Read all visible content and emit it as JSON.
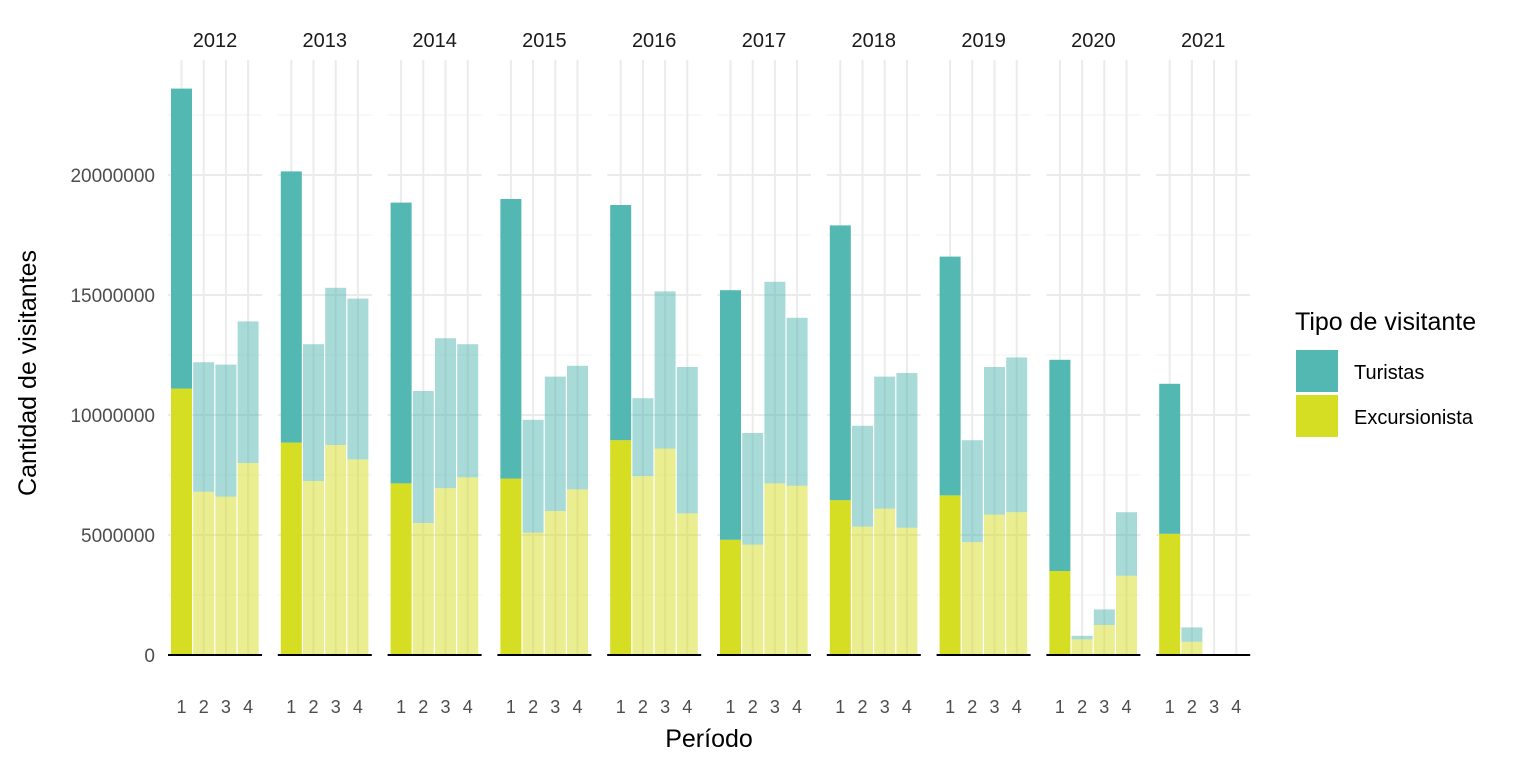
{
  "chart_data": {
    "type": "bar",
    "stacked": true,
    "facet_by": "year",
    "facets": [
      "2012",
      "2013",
      "2014",
      "2015",
      "2016",
      "2017",
      "2018",
      "2019",
      "2020",
      "2021"
    ],
    "categories": [
      "1",
      "2",
      "3",
      "4"
    ],
    "xlabel": "Período",
    "ylabel": "Cantidad de visitantes",
    "ylim": [
      0,
      24000000
    ],
    "yticks": [
      0,
      5000000,
      10000000,
      15000000,
      20000000
    ],
    "ytick_labels": [
      "0",
      "5000000",
      "10000000",
      "15000000",
      "20000000"
    ],
    "grid": true,
    "highlight_period": "1",
    "legend": {
      "title": "Tipo de visitante",
      "placement": "right",
      "entries": [
        {
          "key": "turistas",
          "label": "Turistas",
          "color": "#52B8B1"
        },
        {
          "key": "excursionistas",
          "label": "Excursionista",
          "color": "#D5DE22"
        }
      ]
    },
    "series": [
      {
        "key": "excursionistas",
        "name": "Excursionista",
        "color": "#D5DE22",
        "values": [
          [
            11100000,
            6800000,
            6600000,
            8000000
          ],
          [
            8850000,
            7250000,
            8750000,
            8150000
          ],
          [
            7150000,
            5500000,
            6950000,
            7400000
          ],
          [
            7350000,
            5100000,
            6000000,
            6900000
          ],
          [
            8950000,
            7450000,
            8600000,
            5900000
          ],
          [
            4800000,
            4600000,
            7150000,
            7050000
          ],
          [
            6450000,
            5350000,
            6100000,
            5300000
          ],
          [
            6650000,
            4700000,
            5850000,
            5950000
          ],
          [
            3500000,
            650000,
            1250000,
            3300000
          ],
          [
            5050000,
            550000,
            0,
            0
          ]
        ]
      },
      {
        "key": "turistas",
        "name": "Turistas",
        "color": "#52B8B1",
        "values": [
          [
            12500000,
            5400000,
            5500000,
            5900000
          ],
          [
            11300000,
            5700000,
            6550000,
            6700000
          ],
          [
            11700000,
            5500000,
            6250000,
            5550000
          ],
          [
            11650000,
            4700000,
            5600000,
            5150000
          ],
          [
            9800000,
            3250000,
            6550000,
            6100000
          ],
          [
            10400000,
            4650000,
            8400000,
            7000000
          ],
          [
            11450000,
            4200000,
            5500000,
            6450000
          ],
          [
            9950000,
            4250000,
            6150000,
            6450000
          ],
          [
            8800000,
            150000,
            650000,
            2650000
          ],
          [
            6250000,
            600000,
            0,
            0
          ]
        ]
      }
    ]
  }
}
